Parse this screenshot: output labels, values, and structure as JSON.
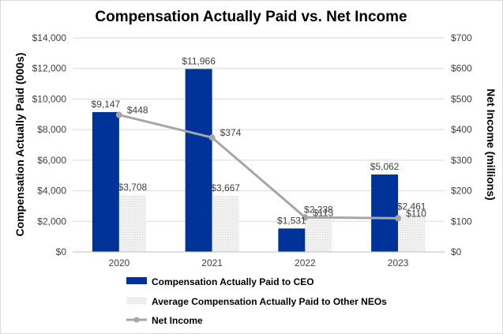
{
  "chart_data": {
    "type": "bar",
    "title": "Compensation Actually Paid vs. Net Income",
    "categories": [
      "2020",
      "2021",
      "2022",
      "2023"
    ],
    "y_left": {
      "label": "Compensation Actually Paid (000s)",
      "lim": [
        0,
        14000
      ],
      "ticks": [
        0,
        2000,
        4000,
        6000,
        8000,
        10000,
        12000,
        14000
      ],
      "tick_labels": [
        "$0",
        "$2,000",
        "$4,000",
        "$6,000",
        "$8,000",
        "$10,000",
        "$12,000",
        "$14,000"
      ]
    },
    "y_right": {
      "label": "Net Income (millions)",
      "lim": [
        0,
        700
      ],
      "ticks": [
        0,
        100,
        200,
        300,
        400,
        500,
        600,
        700
      ],
      "tick_labels": [
        "$0",
        "$100",
        "$200",
        "$300",
        "$400",
        "$500",
        "$600",
        "$700"
      ]
    },
    "series": [
      {
        "name": "Compensation Actually Paid to CEO",
        "type": "bar",
        "axis": "left",
        "color": "#003399",
        "values": [
          9147,
          11966,
          1531,
          5062
        ],
        "labels": [
          "$9,147",
          "$11,966",
          "$1,531",
          "$5,062"
        ]
      },
      {
        "name": "Average Compensation Actually Paid to Other NEOs",
        "type": "bar",
        "axis": "left",
        "color": "#f2f2f2",
        "values": [
          3708,
          3667,
          2238,
          2461
        ],
        "labels": [
          "$3,708",
          "$3,667",
          "$2,238",
          "$2,461"
        ]
      },
      {
        "name": "Net Income",
        "type": "line",
        "axis": "right",
        "color": "#a6a6a6",
        "values": [
          448,
          374,
          113,
          110
        ],
        "labels": [
          "$448",
          "$374",
          "$113",
          "$110"
        ]
      }
    ],
    "grid": true,
    "legend_position": "bottom"
  }
}
